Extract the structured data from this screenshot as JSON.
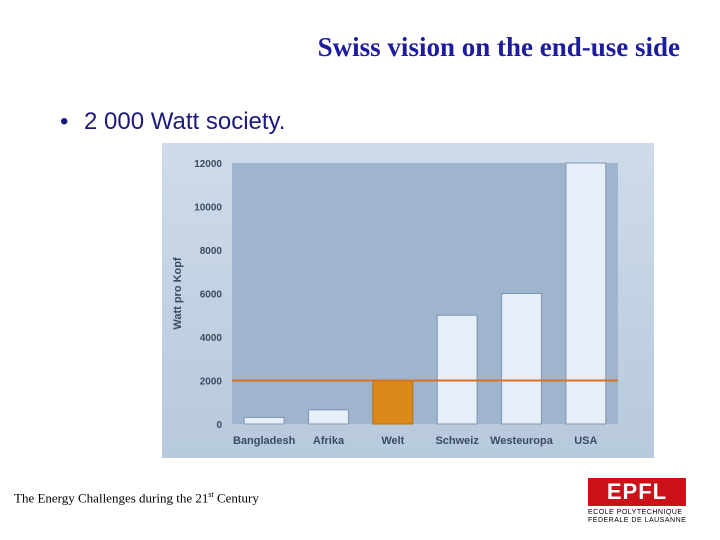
{
  "slide": {
    "title": "Swiss vision on the end-use side",
    "bullet_symbol": "•",
    "bullet_text": "2 000 Watt society.",
    "footer_text": "The Energy Challenges during the 21",
    "footer_superscript": "st",
    "footer_suffix": " Century",
    "logo": {
      "mark_text": "EPFL",
      "line1": "ECOLE POLYTECHNIQUE",
      "line2": "FEDERALE DE LAUSANNE",
      "color": "#cc1219"
    }
  },
  "chart_data": {
    "type": "bar",
    "categories": [
      "Bangladesh",
      "Afrika",
      "Welt",
      "Schweiz",
      "Westeuropa",
      "USA"
    ],
    "values": [
      300,
      650,
      2000,
      5000,
      6000,
      12000
    ],
    "highlight_category": "Welt",
    "title": "",
    "xlabel": "",
    "ylabel": "Watt pro Kopf",
    "ylim": [
      0,
      12000
    ],
    "yticks": [
      0,
      2000,
      4000,
      6000,
      8000,
      10000,
      12000
    ],
    "ytick_labels": [
      "0",
      "2000",
      "4000",
      "6000",
      "8000",
      "10000",
      "12000"
    ],
    "reference_line": 2000,
    "grid": false,
    "colors": {
      "bar": "#e6eef7",
      "highlight_bar": "#d98a1b",
      "reference_line": "#d8731f",
      "plot_background": "#9fb5cd",
      "text": "#3a4b63"
    }
  }
}
